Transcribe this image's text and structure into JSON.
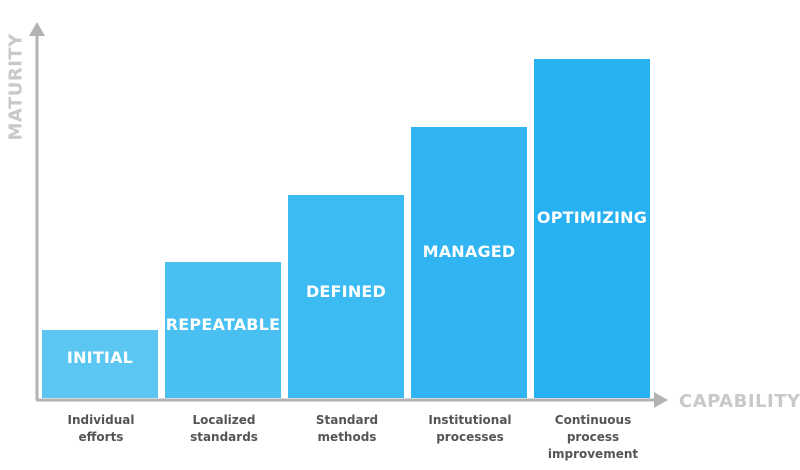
{
  "axes": {
    "y_title": "MATURITY",
    "x_title": "CAPABILITY",
    "axis_color": "#b3b3b3",
    "title_color": "#c9c9c9"
  },
  "chart_data": {
    "type": "bar",
    "title": "",
    "xlabel": "CAPABILITY",
    "ylabel": "MATURITY",
    "ylim": [
      0,
      5.5
    ],
    "grid": false,
    "categories": [
      "Individual\nefforts",
      "Localized\nstandards",
      "Standard\nmethods",
      "Institutional\nprocesses",
      "Continuous\nprocess\nimprovement"
    ],
    "levels": [
      "INITIAL",
      "REPEATABLE",
      "DEFINED",
      "MANAGED",
      "OPTIMIZING"
    ],
    "values": [
      1,
      2,
      3,
      4,
      5
    ],
    "colors": [
      "#5bc6f2",
      "#4ac0f2",
      "#3cbaf2",
      "#30b5f2",
      "#27b1f3"
    ]
  }
}
